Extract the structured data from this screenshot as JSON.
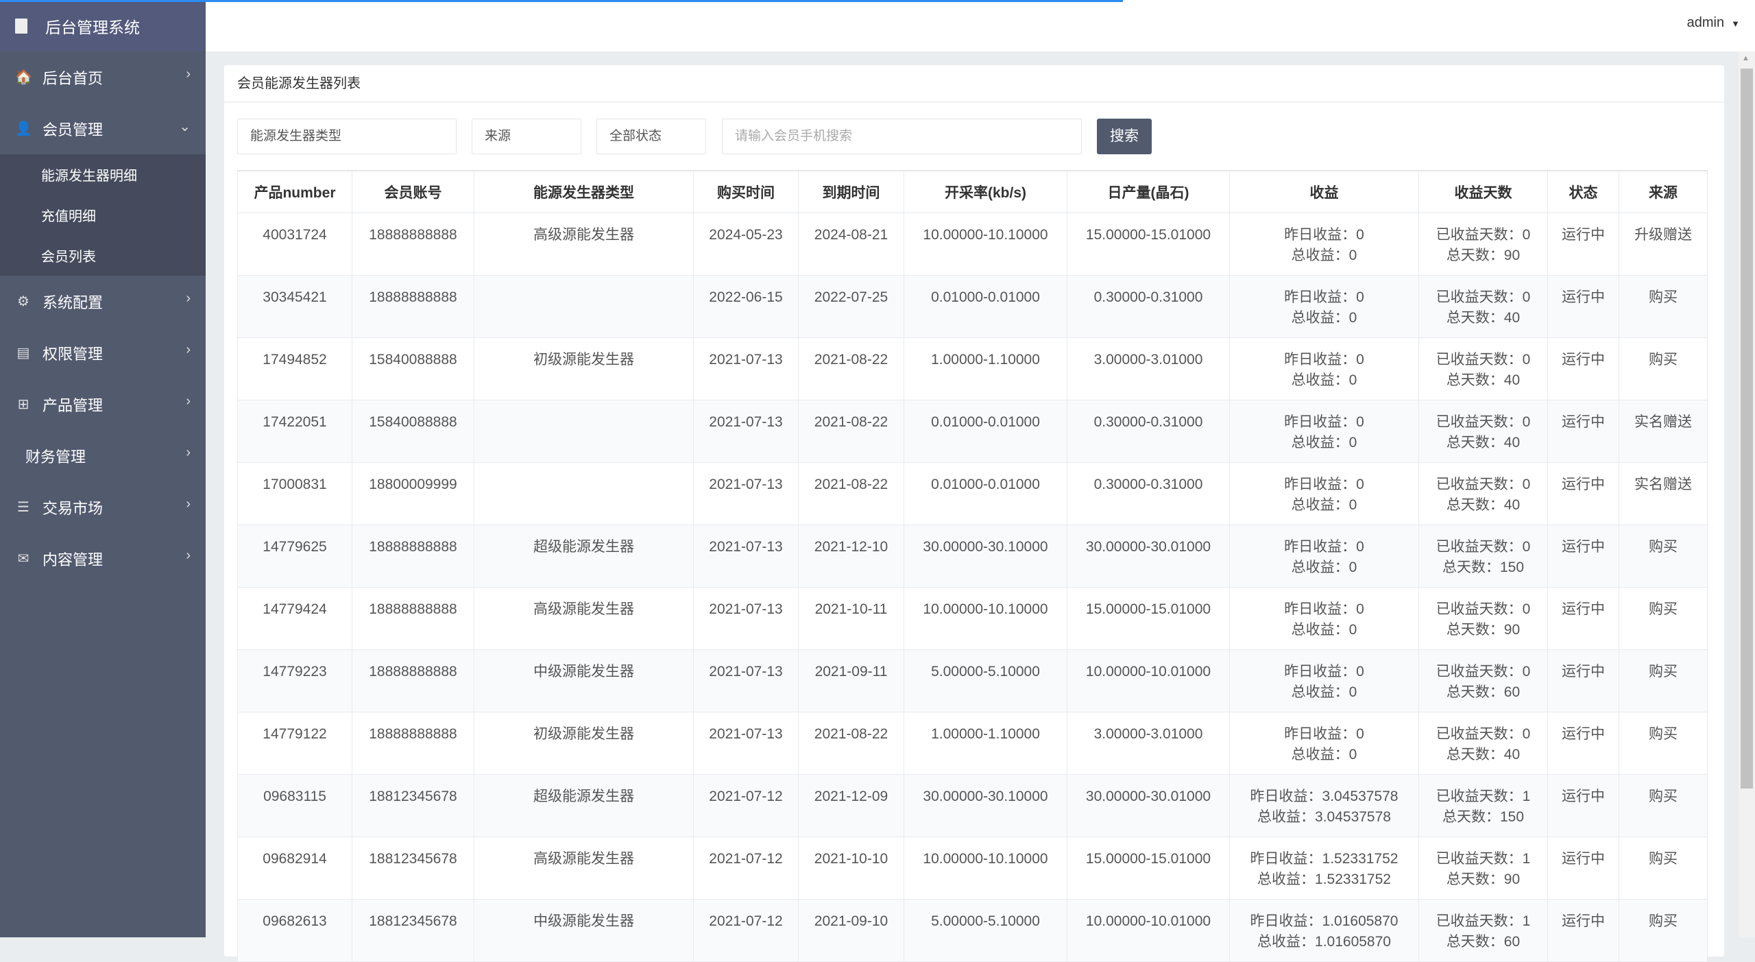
{
  "header": {
    "loading_progress": 0.64,
    "user": "admin"
  },
  "sidebar": {
    "brand": "后台管理系统",
    "items": [
      {
        "label": "后台首页",
        "icon": "home-icon",
        "glyph": "🏠"
      },
      {
        "label": "会员管理",
        "icon": "user-icon",
        "glyph": "👤",
        "expanded": true,
        "children": [
          "能源发生器明细",
          "充值明细",
          "会员列表"
        ]
      },
      {
        "label": "系统配置",
        "icon": "gears-icon",
        "glyph": "⚙"
      },
      {
        "label": "权限管理",
        "icon": "server-icon",
        "glyph": "▤"
      },
      {
        "label": "产品管理",
        "icon": "windows-icon",
        "glyph": "⊞"
      },
      {
        "label": "财务管理",
        "icon": "",
        "glyph": ""
      },
      {
        "label": "交易市场",
        "icon": "list-icon",
        "glyph": "☰"
      },
      {
        "label": "内容管理",
        "icon": "envelope-icon",
        "glyph": "✉"
      }
    ]
  },
  "main": {
    "title": "会员能源发生器列表",
    "filters": {
      "type": "能源发生器类型",
      "source": "来源",
      "status": "全部状态",
      "phone_placeholder": "请输入会员手机搜索",
      "search": "搜索"
    },
    "columns": [
      "产品number",
      "会员账号",
      "能源发生器类型",
      "购买时间",
      "到期时间",
      "开采率(kb/s)",
      "日产量(晶石)",
      "收益",
      "收益天数",
      "状态",
      "来源"
    ],
    "rows": [
      [
        "40031724",
        "18888888888",
        "高级源能发生器",
        "2024-05-23",
        "2024-08-21",
        "10.00000-10.10000",
        "15.00000-15.01000",
        "昨日收益：0",
        "总收益：0",
        "已收益天数：0",
        "总天数：90",
        "运行中",
        "升级赠送"
      ],
      [
        "30345421",
        "18888888888",
        "",
        "2022-06-15",
        "2022-07-25",
        "0.01000-0.01000",
        "0.30000-0.31000",
        "昨日收益：0",
        "总收益：0",
        "已收益天数：0",
        "总天数：40",
        "运行中",
        "购买"
      ],
      [
        "17494852",
        "15840088888",
        "初级源能发生器",
        "2021-07-13",
        "2021-08-22",
        "1.00000-1.10000",
        "3.00000-3.01000",
        "昨日收益：0",
        "总收益：0",
        "已收益天数：0",
        "总天数：40",
        "运行中",
        "购买"
      ],
      [
        "17422051",
        "15840088888",
        "",
        "2021-07-13",
        "2021-08-22",
        "0.01000-0.01000",
        "0.30000-0.31000",
        "昨日收益：0",
        "总收益：0",
        "已收益天数：0",
        "总天数：40",
        "运行中",
        "实名赠送"
      ],
      [
        "17000831",
        "18800009999",
        "",
        "2021-07-13",
        "2021-08-22",
        "0.01000-0.01000",
        "0.30000-0.31000",
        "昨日收益：0",
        "总收益：0",
        "已收益天数：0",
        "总天数：40",
        "运行中",
        "实名赠送"
      ],
      [
        "14779625",
        "18888888888",
        "超级能源发生器",
        "2021-07-13",
        "2021-12-10",
        "30.00000-30.10000",
        "30.00000-30.01000",
        "昨日收益：0",
        "总收益：0",
        "已收益天数：0",
        "总天数：150",
        "运行中",
        "购买"
      ],
      [
        "14779424",
        "18888888888",
        "高级源能发生器",
        "2021-07-13",
        "2021-10-11",
        "10.00000-10.10000",
        "15.00000-15.01000",
        "昨日收益：0",
        "总收益：0",
        "已收益天数：0",
        "总天数：90",
        "运行中",
        "购买"
      ],
      [
        "14779223",
        "18888888888",
        "中级源能发生器",
        "2021-07-13",
        "2021-09-11",
        "5.00000-5.10000",
        "10.00000-10.01000",
        "昨日收益：0",
        "总收益：0",
        "已收益天数：0",
        "总天数：60",
        "运行中",
        "购买"
      ],
      [
        "14779122",
        "18888888888",
        "初级源能发生器",
        "2021-07-13",
        "2021-08-22",
        "1.00000-1.10000",
        "3.00000-3.01000",
        "昨日收益：0",
        "总收益：0",
        "已收益天数：0",
        "总天数：40",
        "运行中",
        "购买"
      ],
      [
        "09683115",
        "18812345678",
        "超级能源发生器",
        "2021-07-12",
        "2021-12-09",
        "30.00000-30.10000",
        "30.00000-30.01000",
        "昨日收益：3.04537578",
        "总收益：3.04537578",
        "已收益天数：1",
        "总天数：150",
        "运行中",
        "购买"
      ],
      [
        "09682914",
        "18812345678",
        "高级源能发生器",
        "2021-07-12",
        "2021-10-10",
        "10.00000-10.10000",
        "15.00000-15.01000",
        "昨日收益：1.52331752",
        "总收益：1.52331752",
        "已收益天数：1",
        "总天数：90",
        "运行中",
        "购买"
      ],
      [
        "09682613",
        "18812345678",
        "中级源能发生器",
        "2021-07-12",
        "2021-09-10",
        "5.00000-5.10000",
        "10.00000-10.01000",
        "昨日收益：1.01605870",
        "总收益：1.01605870",
        "已收益天数：1",
        "总天数：60",
        "运行中",
        "购买"
      ]
    ]
  }
}
